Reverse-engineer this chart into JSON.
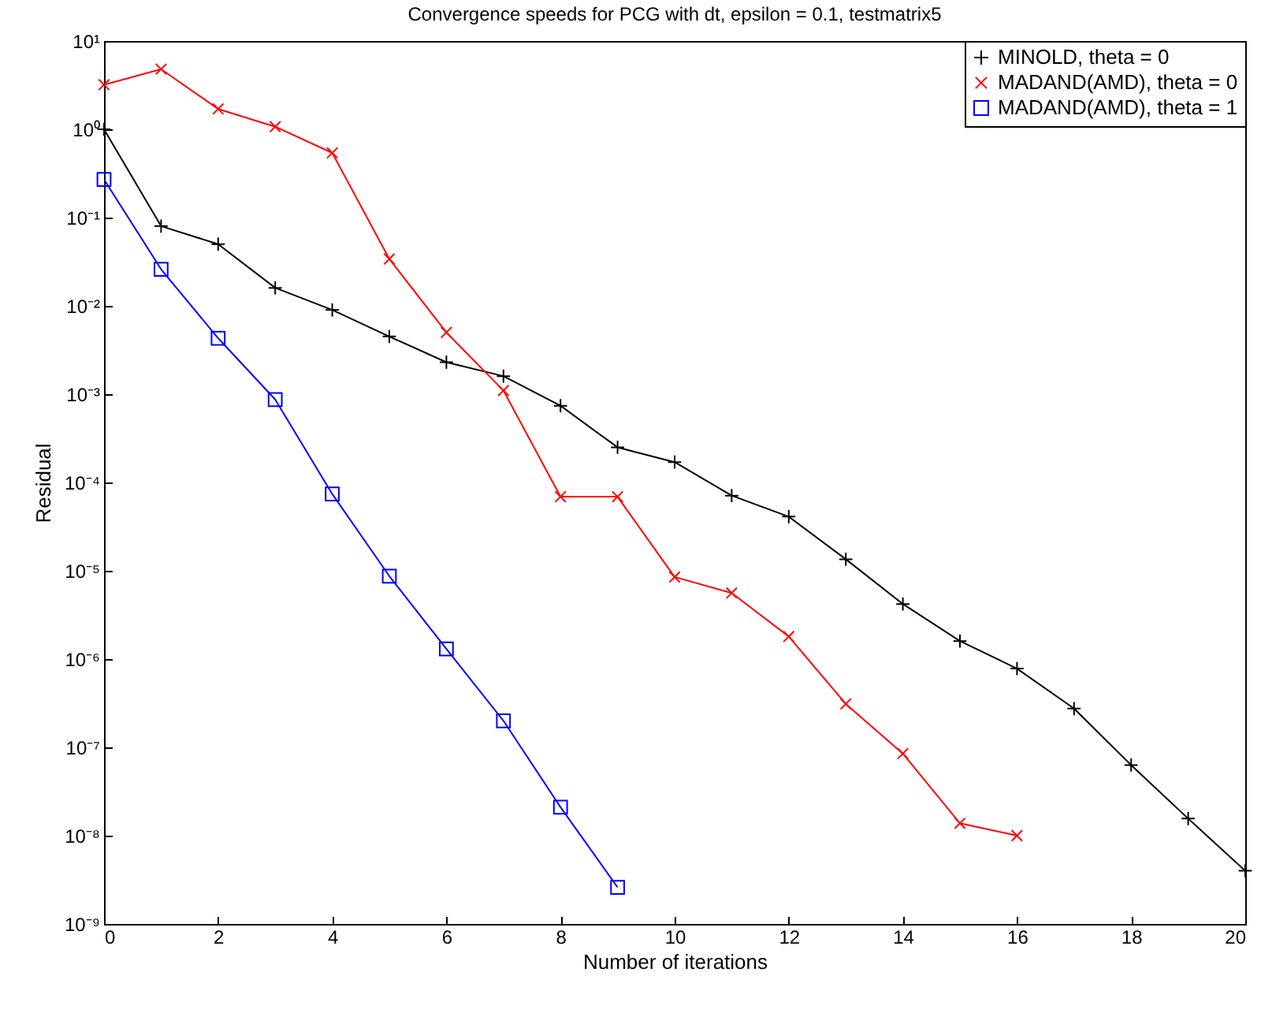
{
  "chart_data": {
    "type": "line",
    "title": "Convergence speeds for PCG with dt, epsilon = 0.1, testmatrix5",
    "xlabel": "Number of iterations",
    "ylabel": "Residual",
    "log": "y",
    "grid": false,
    "legend": "top right",
    "line_style": "solid",
    "xlim": [
      0,
      20
    ],
    "xticks": [
      0,
      2,
      4,
      6,
      8,
      10,
      12,
      14,
      16,
      18,
      20
    ],
    "ylim": [
      1e-09,
      10
    ],
    "yticks": [
      {
        "value": 1e-09,
        "label": "10⁻⁹"
      },
      {
        "value": 1e-08,
        "label": "10⁻⁸"
      },
      {
        "value": 1e-07,
        "label": "10⁻⁷"
      },
      {
        "value": 1e-06,
        "label": "10⁻⁶"
      },
      {
        "value": 1e-05,
        "label": "10⁻⁵"
      },
      {
        "value": 0.0001,
        "label": "10⁻⁴"
      },
      {
        "value": 0.001,
        "label": "10⁻³"
      },
      {
        "value": 0.01,
        "label": "10⁻²"
      },
      {
        "value": 0.1,
        "label": "10⁻¹"
      },
      {
        "value": 1,
        "label": "10⁰"
      },
      {
        "value": 10,
        "label": "10¹"
      }
    ],
    "series": [
      {
        "name": "MINOLD, theta = 0",
        "color": "#000000",
        "marker": "cross",
        "x": [
          0,
          1,
          2,
          3,
          4,
          5,
          6,
          7,
          8,
          9,
          10,
          11,
          12,
          13,
          14,
          15,
          16,
          17,
          18,
          19,
          20
        ],
        "values": [
          1,
          0.08,
          0.05,
          0.016,
          0.009,
          0.0045,
          0.0023,
          0.0016,
          0.00074,
          0.00025,
          0.00017,
          7.1e-05,
          4.1e-05,
          1.35e-05,
          4.2e-06,
          1.6e-06,
          7.8e-07,
          2.75e-07,
          6.3e-08,
          1.56e-08,
          4e-09
        ]
      },
      {
        "name": "MADAND(AMD), theta = 0",
        "color": "#ff0000",
        "marker": "x",
        "x": [
          0,
          1,
          2,
          3,
          4,
          5,
          6,
          7,
          8,
          9,
          10,
          11,
          12,
          13,
          14,
          15,
          16
        ],
        "values": [
          3.2,
          4.8,
          1.7,
          1.07,
          0.54,
          0.034,
          0.005,
          0.0011,
          6.9e-05,
          6.9e-05,
          8.5e-06,
          5.6e-06,
          1.8e-06,
          3.1e-07,
          8.5e-08,
          1.38e-08,
          1e-08
        ]
      },
      {
        "name": "MADAND(AMD), theta = 1",
        "color": "#0000ff",
        "marker": "square",
        "x": [
          0,
          1,
          2,
          3,
          4,
          5,
          6,
          7,
          8,
          9
        ],
        "values": [
          0.27,
          0.026,
          0.0043,
          0.00087,
          7.4e-05,
          8.7e-06,
          1.3e-06,
          2e-07,
          2.1e-08,
          2.6e-09
        ]
      }
    ]
  }
}
